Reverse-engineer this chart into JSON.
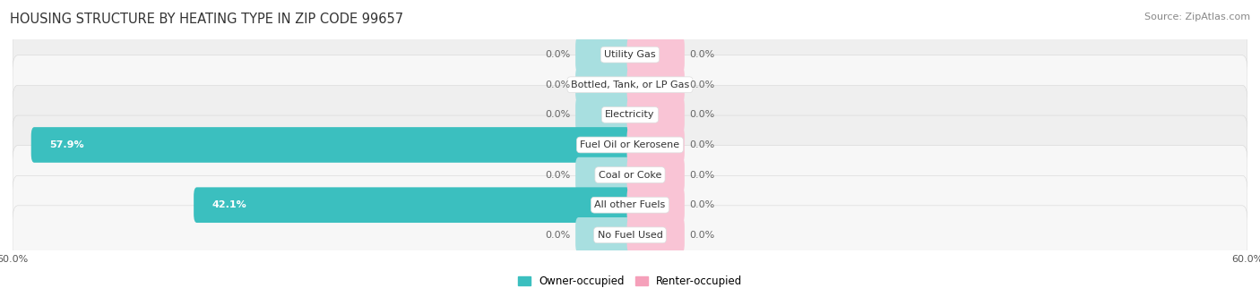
{
  "title": "HOUSING STRUCTURE BY HEATING TYPE IN ZIP CODE 99657",
  "source": "Source: ZipAtlas.com",
  "categories": [
    "Utility Gas",
    "Bottled, Tank, or LP Gas",
    "Electricity",
    "Fuel Oil or Kerosene",
    "Coal or Coke",
    "All other Fuels",
    "No Fuel Used"
  ],
  "owner_values": [
    0.0,
    0.0,
    0.0,
    57.9,
    0.0,
    42.1,
    0.0
  ],
  "renter_values": [
    0.0,
    0.0,
    0.0,
    0.0,
    0.0,
    0.0,
    0.0
  ],
  "owner_color": "#3BBFBF",
  "renter_color": "#F5A0BA",
  "owner_color_light": "#A8DFE0",
  "renter_color_light": "#F9C4D5",
  "row_bg_colors": [
    "#EFEFEF",
    "#F7F7F7",
    "#EFEFEF",
    "#EFEFEF",
    "#F7F7F7",
    "#F7F7F7",
    "#F7F7F7"
  ],
  "x_max": 60.0,
  "x_min": -60.0,
  "x_tick_labels": [
    "60.0%",
    "60.0%"
  ],
  "title_fontsize": 10.5,
  "source_fontsize": 8,
  "bar_label_fontsize": 8,
  "category_fontsize": 8,
  "axis_label_fontsize": 8,
  "legend_fontsize": 8.5,
  "bar_height": 0.58,
  "background_color": "#FFFFFF",
  "min_owner_bar": 5.0,
  "min_renter_bar": 5.0
}
